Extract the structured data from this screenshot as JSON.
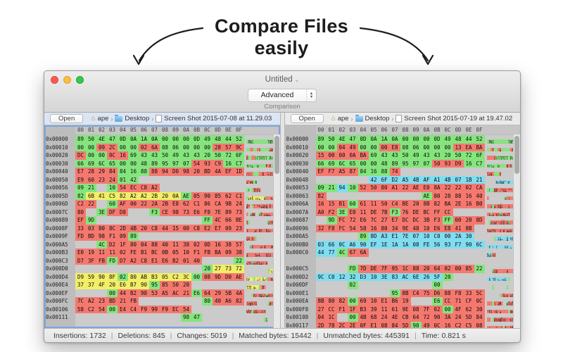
{
  "callout": {
    "line1": "Compare Files",
    "line2": "easily"
  },
  "colors": {
    "match": "#85e57d",
    "change": "#f5786f",
    "moved": "#f2ee68",
    "insert": "#80ddf1",
    "gap": "#cbcbcb"
  },
  "window": {
    "title": "Untitled",
    "mode_select": {
      "value": "Advanced",
      "label": "Comparison"
    },
    "columns_header": [
      "00",
      "01",
      "02",
      "03",
      "04",
      "05",
      "06",
      "07",
      "08",
      "09",
      "0A",
      "0B",
      "0C",
      "0D",
      "0E",
      "0F"
    ],
    "status_bar": {
      "separator": "|",
      "items": [
        "Insertions: 1732",
        "Deletions: 845",
        "Changes: 5019",
        "Matched bytes: 15442",
        "Unmatched bytes: 445391",
        "Time: 0.821 s"
      ]
    },
    "left_panel": {
      "open_label": "Open",
      "path": {
        "root": "ape",
        "folder": "Desktop",
        "file": "Screen Shot 2015-07-08 at 11.29.03"
      },
      "rows": [
        {
          "a": "0x00000",
          "b": "89504E470D0A1A0A0000000D49484452",
          "c": "gggggggggggggggg",
          "t": ".PNG........IHDR"
        },
        {
          "a": "0x00010",
          "b": "0000092C0000026A080600000028579C",
          "c": "ggrrggrrgggggrrr",
          "t": ".. ,...j.....+W."
        },
        {
          "a": "0x00020",
          "b": "DC00000C16694343504943432050726F",
          "c": "rggrrggggggggggg",
          "t": "Ü....iCCPICC Pro"
        },
        {
          "a": "0x00030",
          "b": "66696C65000048899597075493C916C7",
          "c": "gggggggggggrrrgg",
          "t": "file..H....T.É.Ç"
        },
        {
          "a": "0x00040",
          "b": "E72829848416888894D09820BD4AEF1D",
          "c": "rrrrgggrrrrrrrrr",
          "t": "ç()......Ð. ½Jï."
        },
        {
          "a": "0x00050",
          "b": "E96023240142                    ",
          "c": "rrrrgg..........",
          "t": "é`#$.B          "
        },
        {
          "a": "0x00056",
          "b": "0921  1054ECC8A2                ",
          "c": "gg.grrrr........",
          "t": ".! .TìÈ¢        "
        },
        {
          "a": "0x0005D",
          "b": "826B41C582A2A22B200AAE05908562C1",
          "c": "gyyyyyyyyygrrrrr",
          "t": ".kAÅ.¢¢+ .®...bÁ"
        },
        {
          "a": "0x0006D",
          "b": "C222  60AF00222A2BE862C186CA9B24",
          "c": "rr.grrrrrrrrrrrr",
          "t": "Â\" `¯.\"*+èbÁ.Ê.$"
        },
        {
          "a": "0x0007C",
          "b": "80  3EDFD8    F3CE9873E6F87E8973",
          "c": "r.grr..grrrrrrrr",
          "t": ". >ßØ  óÎ.sæø~.s"
        },
        {
          "a": "0x00089",
          "b": "EF9D                    FF4C66BE",
          "c": "rg..........grrr",
          "t": "ï.          ÿLf¾"
        },
        {
          "a": "0x0008F",
          "b": "3303808C2D4B20C8441500C8E2E70923",
          "c": "rrrrrrrrrrrrrrrr",
          "t": "3...-K ÈD..Èâç.#"
        },
        {
          "a": "0x0009F",
          "b": "FDBD98F10989                    ",
          "c": "rrrrrg..........",
          "t": "ý½.ñ..          "
        },
        {
          "a": "0x000A5",
          "b": "    4CD21F800488401138020D163857",
          "c": "..grrrrrrrrrrrrr",
          "t": "  LÒ....@.8...8W"
        },
        {
          "a": "0x000B3",
          "b": "E019111102FEB1BC0B0510F1FBBA0938",
          "c": "rrrrrrrrrrrrrrrr",
          "t": "à....þ±¼...ñûº.8"
        },
        {
          "a": "0x000C3",
          "b": "D73FFBFDD7A2C8E1E6B20140      22",
          "c": "rrrgrrrrrrrr...g",
          "t": "×?ûý×¢Èáæ².@   \""
        },
        {
          "a": "0x000D0",
          "b": "                        20277372",
          "c": "............gyyy",
          "t": "             'sr"
        },
        {
          "a": "0x000D4",
          "b": "D959908F0280ABB305C23C00089DD0AE",
          "c": "yyyygyyyyyygrrrr",
          "t": "ÙY....«³.Â<...Ð®"
        },
        {
          "a": "0x000E4",
          "b": "37374F20E6B79095855020          ",
          "c": "yyyyyyygrrr.....",
          "t": "77O æ·...P      "
        },
        {
          "a": "0x000EF",
          "b": "      0044B29853A5AC21E664295B4A",
          "c": "...grrrrrrrgrrrr",
          "t": "   .D².S¥¬!æd)[J"
        },
        {
          "a": "0x000FC",
          "b": "7CA223BD21FB            8040A682",
          "c": "rrrrrr......grrr",
          "t": "|¢#½!û      .@¦."
        },
        {
          "a": "0x00106",
          "b": "58C25400E4C4F999F9EC54          ",
          "c": "rrrgrrrrrrr.....",
          "t": "XÂT.äÄù.ùìT     "
        },
        {
          "a": "0x00111",
          "b": "                    9847        ",
          "c": "..........gg....",
          "t": "          .G    "
        },
        {
          "a": "",
          "b": "                                ",
          "c": "................",
          "t": "                "
        }
      ]
    },
    "right_panel": {
      "open_label": "Open",
      "path": {
        "root": "ape",
        "folder": "Desktop",
        "file": "Screen Shot 2015-07-19 at 19.47.02"
      },
      "rows": [
        {
          "a": "0x00000",
          "b": "89504E470D0A1A0A0000000D49484452",
          "c": "gggggggggggggggg",
          "t": ".PNG........IHDR"
        },
        {
          "a": "0x00010",
          "b": "00000449000000E8080600000013EABA",
          "c": "ggrrggrrgggggrrr",
          "t": "...I...è......êº"
        },
        {
          "a": "0x00020",
          "b": "1500000ABA694343504943432050726F",
          "c": "rrrrrggggggggggg",
          "t": "....ºiCCPICC Pro"
        },
        {
          "a": "0x00030",
          "b": "66696C65000048899597075093D916C7",
          "c": "gggggggggggrrrgg",
          "t": "file..H....P.Ù.Ç"
        },
        {
          "a": "0x00040",
          "b": "EFF7A58784168874                ",
          "c": "rrrrgggr........",
          "t": "ï÷¥....t        "
        },
        {
          "a": "0x00048",
          "b": "          426FD2A54BAFA14B071B21",
          "c": ".....ccccccccccc",
          "t": "     BoÒ¥K¯¡K..!"
        },
        {
          "a": "0x00053",
          "b": "09219410525080A122AEE08A222202CA",
          "c": "ggcgrrrrrrrrrrrr",
          "t": ".!..RP.¡\"®à.\"\".Ê"
        },
        {
          "a": "0x00063",
          "b": "82                  AE8028881640",
          "c": "r.........grrrrr",
          "t": ".         ®.(..@"
        },
        {
          "a": "0x0006A",
          "b": "1615B160611150C4BE208B82BA2E16B0",
          "c": "rrrgrrrrrrrrrrrr",
          "t": "..±`a.PÄ¾ ..º..°"
        },
        {
          "a": "0x0007A",
          "b": "A0F23EE011DE7BF376DEBCFFCC      ",
          "c": "rrgrrrrgrrrrr...",
          "t": " ò>à.Þ{óvÞ¼ÿÌ   "
        },
        {
          "a": "0x00087",
          "b": "  9DFC72E67C27E7DCDC3BF3FF00208D",
          "c": ".grrrrrrrrrrgrrr",
          "t": " .üræ|'çÜÜ;óÿ. ."
        },
        {
          "a": "0x00096",
          "b": "32F8FC54581680349E4810E6E8418B  ",
          "c": "rrrrrrrrrrrrrrr.",
          "t": "2øüTX..4.H.æèA. "
        },
        {
          "a": "0x000A5",
          "b": "        898DA3E17E0710C0002A30  ",
          "c": "....gcccccccccc.",
          "t": "    ..£á~..À.*0 "
        },
        {
          "a": "0x000B0",
          "b": "03660CA690EF1E1A1A08FE5693F7906C",
          "c": "cccccccccccccccc",
          "t": ".f.¦.ï....þV.÷.l"
        },
        {
          "a": "0x000C0",
          "b": "44774C676A                      ",
          "c": "ccgrr...........",
          "t": "DwLgj           "
        },
        {
          "a": "",
          "b": "                                ",
          "c": "................",
          "t": "                "
        },
        {
          "a": "0x000C5",
          "b": "      FD7DDE7F951C88206402008522",
          "c": "...grrrrrrrrrrrg",
          "t": "   ý}Þ.... d...\""
        },
        {
          "a": "0x000D2",
          "b": "9CC01232D3103E83AC6E265F20      ",
          "c": "ccccccccccccg...",
          "t": ".À.2Ó.>.¬n&_    "
        },
        {
          "a": "0x000DF",
          "b": "      02              00        ",
          "c": "...g.......g....",
          "t": "   .       .    "
        },
        {
          "a": "0x000E1",
          "b": "              958BC475D688F8335C",
          "c": ".......grrrrrrrr",
          "t": "       ..Äuö.ø3\\"
        },
        {
          "a": "0x000EA",
          "b": "8B8082006910E1B619    E6CC71CF0C",
          "c": "rrrgrrrrr..grrrr",
          "t": "....i.á¶.  æÌqÏ."
        },
        {
          "a": "0x000F8",
          "b": "27CCF11FB33911619E087F02004F6230",
          "c": "rrrrrrrrrrrrgrrr",
          "t": "'Ìñ.³9.a.....Ob0"
        },
        {
          "a": "0x00108",
          "b": "041C  004B68244ECB6472903A245D84",
          "c": "rr.grrrrrrrrrrrr",
          "t": ".. .Kh$NËdr.:$]."
        },
        {
          "a": "0x00117",
          "b": "2D782C2E0FE108845D98490C16C2C508",
          "c": "rrrrrrrrrgrrrrrr",
          "t": "-x,..á..].I..ÂÅ."
        }
      ]
    }
  }
}
